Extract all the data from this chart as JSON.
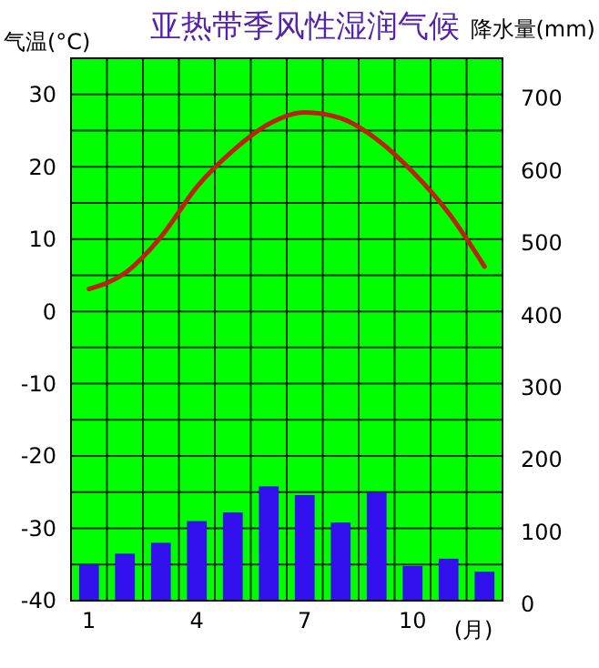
{
  "chart_data": {
    "type": "bar",
    "title": "亚热带季风性湿润气候",
    "ylabel": "气温(°C)",
    "y2label": "降水量(mm)",
    "xlabel": "(月)",
    "categories": [
      "1",
      null,
      null,
      "4",
      null,
      null,
      "7",
      null,
      null,
      "10",
      null,
      null
    ],
    "series": [
      {
        "axis": "y2",
        "color": "#3311ee",
        "values": [
          50,
          65,
          80,
          110,
          122,
          158,
          146,
          108,
          150,
          48,
          58,
          40
        ]
      },
      {
        "type": "line",
        "axis": "y",
        "color": "#bb2211",
        "values": [
          3.1,
          5.3,
          10.3,
          17.2,
          22.2,
          25.9,
          27.5,
          26.7,
          23.8,
          19.3,
          13.6,
          6.2
        ]
      }
    ],
    "ylim": [
      -40,
      35
    ],
    "yticks": [
      -40,
      {
        "value": -35,
        "label": null
      },
      -30,
      {
        "value": -25,
        "label": null
      },
      -20,
      {
        "value": -15,
        "label": null
      },
      -10,
      {
        "value": -5,
        "label": null
      },
      0,
      {
        "value": 5,
        "label": null
      },
      10,
      {
        "value": 15,
        "label": null
      },
      20,
      {
        "value": 25,
        "label": null
      },
      30
    ],
    "y2lim": [
      0,
      750
    ],
    "y2ticks": [
      0,
      100,
      200,
      300,
      400,
      500,
      600,
      700
    ],
    "grid": true,
    "line_style": "solid",
    "marker": "none"
  }
}
